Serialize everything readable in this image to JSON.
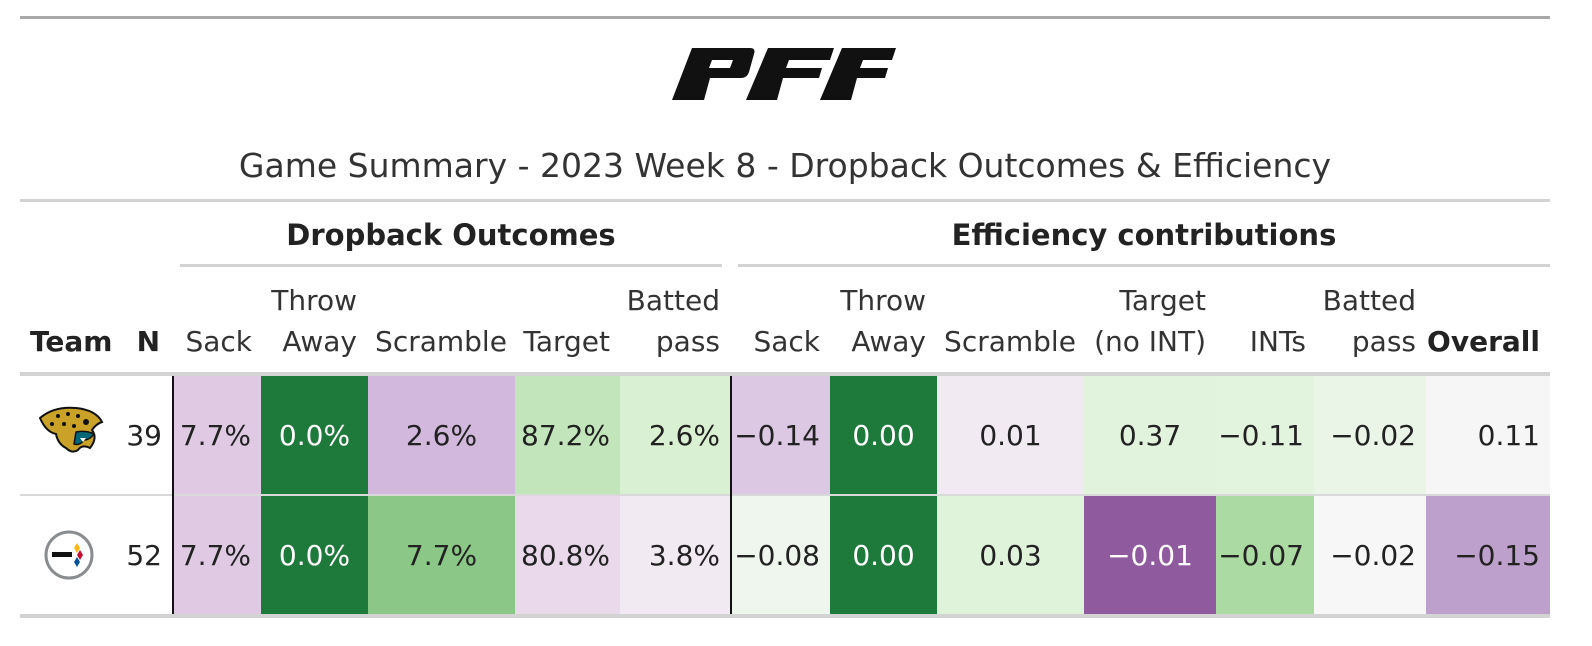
{
  "title": "Game Summary - 2023 Week 8 - Dropback Outcomes & Efficiency",
  "spanners": {
    "outcomes": "Dropback Outcomes",
    "efficiency": "Efficiency contributions"
  },
  "columns": {
    "team": "Team",
    "n": "N",
    "sack": "Sack",
    "throw_away": "Throw\nAway",
    "scramble": "Scramble",
    "target": "Target",
    "batted_pass": "Batted\npass",
    "eff_sack": "Sack",
    "eff_throw_away": "Throw\nAway",
    "eff_scramble": "Scramble",
    "eff_target": "Target\n(no INT)",
    "eff_ints": "INTs",
    "eff_batted_pass": "Batted\npass",
    "overall": "Overall"
  },
  "rows": [
    {
      "team_logo": "jaguars-logo-icon",
      "n": "39",
      "sack": "7.7%",
      "throw_away": "0.0%",
      "scramble": "2.6%",
      "target": "87.2%",
      "batted_pass": "2.6%",
      "eff_sack": "−0.14",
      "eff_throw_away": "0.00",
      "eff_scramble": "0.01",
      "eff_target": "0.37",
      "eff_ints": "−0.11",
      "eff_batted_pass": "−0.02",
      "overall": "0.11",
      "colors": {
        "sack": "#dfc9e3",
        "throw_away": "#1e7a3a",
        "scramble": "#d2b8dc",
        "target": "#c2e5bb",
        "batted_pass": "#daf0d3",
        "eff_sack": "#dcc8e3",
        "eff_throw_away": "#1e7a3a",
        "eff_scramble": "#f1eaf3",
        "eff_target": "#e1f3dc",
        "eff_ints": "#e3f4de",
        "eff_batted_pass": "#eaf5e7",
        "overall": "#f6f6f6"
      }
    },
    {
      "team_logo": "steelers-logo-icon",
      "n": "52",
      "sack": "7.7%",
      "throw_away": "0.0%",
      "scramble": "7.7%",
      "target": "80.8%",
      "batted_pass": "3.8%",
      "eff_sack": "−0.08",
      "eff_throw_away": "0.00",
      "eff_scramble": "0.03",
      "eff_target": "−0.01",
      "eff_ints": "−0.07",
      "eff_batted_pass": "−0.02",
      "overall": "−0.15",
      "colors": {
        "sack": "#dfc9e3",
        "throw_away": "#1e7a3a",
        "scramble": "#8bc786",
        "target": "#ead9eb",
        "batted_pass": "#f2eaf3",
        "eff_sack": "#eff6ed",
        "eff_throw_away": "#1e7a3a",
        "eff_scramble": "#dff2da",
        "eff_target": "#905a9e",
        "eff_ints": "#acdaa3",
        "eff_batted_pass": "#f7f7f7",
        "overall": "#bea0cc"
      }
    }
  ]
}
